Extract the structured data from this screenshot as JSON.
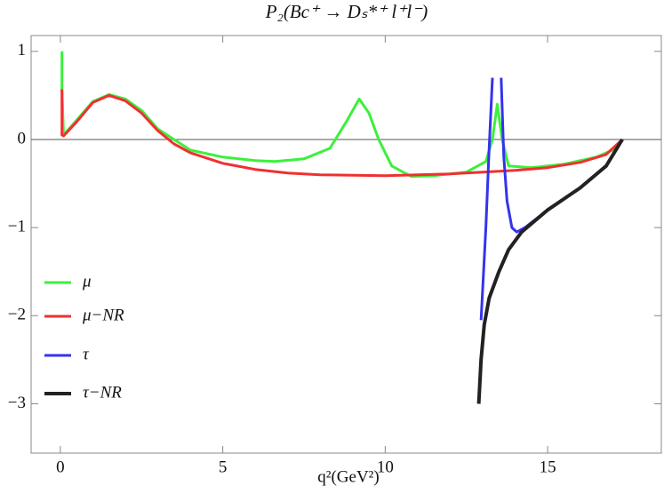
{
  "chart_data": {
    "type": "line",
    "title": "P₂(Bc⁺ → Dₛ*⁺ l⁺l⁻)",
    "x_label": "q²(GeV²)",
    "xlim": [
      -0.9,
      18.5
    ],
    "xticks": [
      0,
      5,
      10,
      15
    ],
    "ylim": [
      -3.56,
      1.18
    ],
    "yticks": [
      1,
      0,
      {
        "value": -1,
        "label": "−1"
      },
      {
        "value": -2,
        "label": "−2"
      },
      {
        "value": -3,
        "label": "−3"
      }
    ],
    "legend": "lower-left",
    "series": [
      {
        "name": "μ",
        "color": "#3cf03c",
        "width": 3,
        "x": [
          0.05,
          0.05,
          0.1,
          0.5,
          1,
          1.5,
          2,
          2.5,
          3,
          4,
          5,
          6,
          6.6,
          7.5,
          8.3,
          8.8,
          9.2,
          9.5,
          9.8,
          10.2,
          10.8,
          11.5,
          12.5,
          13.1,
          13.3,
          13.45,
          13.6,
          13.8,
          14.5,
          15.5,
          16.5,
          17,
          17.3
        ],
        "values": [
          1.0,
          0.57,
          0.05,
          0.22,
          0.43,
          0.51,
          0.46,
          0.33,
          0.12,
          -0.12,
          -0.2,
          -0.24,
          -0.25,
          -0.22,
          -0.1,
          0.2,
          0.46,
          0.3,
          0.0,
          -0.3,
          -0.42,
          -0.41,
          -0.37,
          -0.25,
          0.0,
          0.4,
          0.0,
          -0.3,
          -0.32,
          -0.28,
          -0.2,
          -0.12,
          0.0
        ]
      },
      {
        "name": "μ−NR",
        "color": "#f03030",
        "width": 3,
        "x": [
          0.05,
          0.05,
          0.1,
          0.5,
          1,
          1.5,
          2,
          2.5,
          3,
          3.5,
          4,
          5,
          6,
          7,
          8,
          10,
          12,
          14,
          15,
          16,
          16.8,
          17.3
        ],
        "values": [
          0.57,
          0.05,
          0.04,
          0.2,
          0.42,
          0.5,
          0.44,
          0.3,
          0.1,
          -0.05,
          -0.15,
          -0.27,
          -0.34,
          -0.38,
          -0.4,
          -0.41,
          -0.39,
          -0.35,
          -0.32,
          -0.26,
          -0.17,
          0.0
        ]
      },
      {
        "name": "τ",
        "color": "#3333ee",
        "width": 3,
        "x": [
          12.95,
          13.1,
          13.2,
          13.3,
          13.4,
          13.57,
          13.65,
          13.75,
          13.9,
          14.05,
          14.3,
          15,
          16,
          16.8,
          17.3
        ],
        "values": [
          -2.05,
          -1.0,
          -0.1,
          0.7,
          null,
          0.7,
          -0.2,
          -0.7,
          -1.0,
          -1.05,
          -1.0,
          -0.8,
          -0.55,
          -0.3,
          0.0
        ]
      },
      {
        "name": "τ−NR",
        "color": "#222222",
        "width": 4,
        "x": [
          12.88,
          12.95,
          13.05,
          13.2,
          13.5,
          13.8,
          14.2,
          15,
          16,
          16.8,
          17.3
        ],
        "values": [
          -3.0,
          -2.5,
          -2.1,
          -1.8,
          -1.5,
          -1.25,
          -1.05,
          -0.8,
          -0.55,
          -0.3,
          0.0
        ]
      }
    ]
  }
}
